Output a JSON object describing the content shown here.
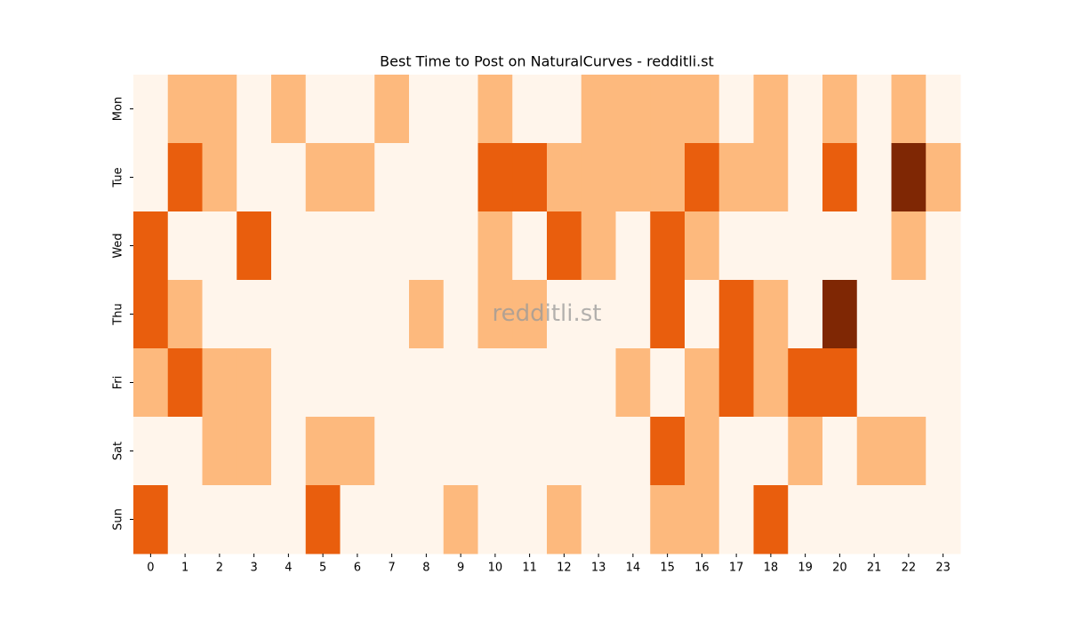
{
  "chart_data": {
    "type": "heatmap",
    "title": "Best Time to Post on NaturalCurves - redditli.st",
    "watermark": "redditli.st",
    "x": [
      0,
      1,
      2,
      3,
      4,
      5,
      6,
      7,
      8,
      9,
      10,
      11,
      12,
      13,
      14,
      15,
      16,
      17,
      18,
      19,
      20,
      21,
      22,
      23
    ],
    "y": [
      "Mon",
      "Tue",
      "Wed",
      "Thu",
      "Fri",
      "Sat",
      "Sun"
    ],
    "values": [
      [
        0,
        1,
        1,
        0,
        1,
        0,
        0,
        1,
        0,
        0,
        1,
        0,
        0,
        1,
        1,
        1,
        1,
        0,
        1,
        0,
        1,
        0,
        1,
        0
      ],
      [
        0,
        2,
        1,
        0,
        0,
        1,
        1,
        0,
        0,
        0,
        2,
        2,
        1,
        1,
        1,
        1,
        2,
        1,
        1,
        0,
        2,
        0,
        3,
        1
      ],
      [
        2,
        0,
        0,
        2,
        0,
        0,
        0,
        0,
        0,
        0,
        1,
        0,
        2,
        1,
        0,
        2,
        1,
        0,
        0,
        0,
        0,
        0,
        1,
        0
      ],
      [
        2,
        1,
        0,
        0,
        0,
        0,
        0,
        0,
        1,
        0,
        1,
        1,
        0,
        0,
        0,
        2,
        0,
        2,
        1,
        0,
        3,
        0,
        0,
        0
      ],
      [
        1,
        2,
        1,
        1,
        0,
        0,
        0,
        0,
        0,
        0,
        0,
        0,
        0,
        0,
        1,
        0,
        1,
        2,
        1,
        2,
        2,
        0,
        0,
        0
      ],
      [
        0,
        0,
        1,
        1,
        0,
        1,
        1,
        0,
        0,
        0,
        0,
        0,
        0,
        0,
        0,
        2,
        1,
        0,
        0,
        1,
        0,
        1,
        1,
        0
      ],
      [
        2,
        0,
        0,
        0,
        0,
        2,
        0,
        0,
        0,
        1,
        0,
        0,
        1,
        0,
        0,
        1,
        1,
        0,
        2,
        0,
        0,
        0,
        0,
        0
      ]
    ],
    "vlim": [
      0,
      3
    ],
    "colors": [
      "#fff5eb",
      "#fdb97d",
      "#e95e0d",
      "#7f2704"
    ]
  }
}
